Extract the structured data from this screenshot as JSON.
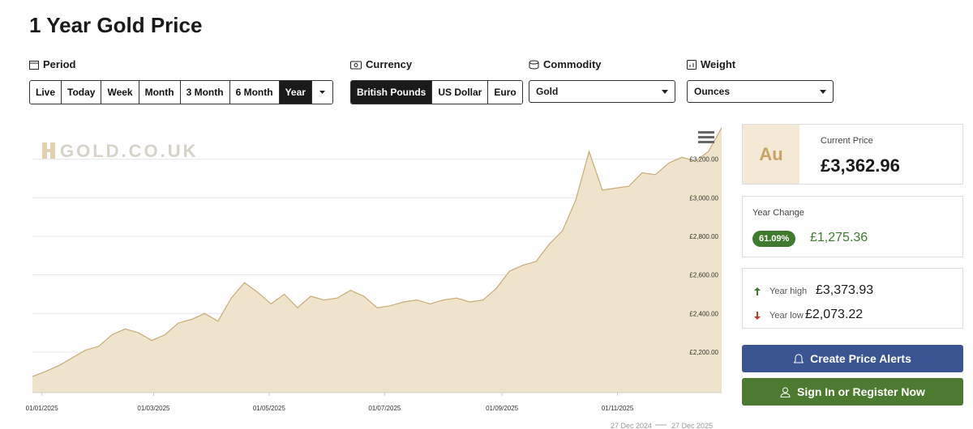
{
  "title": "1 Year Gold Price",
  "period": {
    "label": "Period",
    "options": [
      "Live",
      "Today",
      "Week",
      "Month",
      "3 Month",
      "6 Month",
      "Year"
    ],
    "selected": "Year"
  },
  "currency": {
    "label": "Currency",
    "options": [
      "British Pounds",
      "US Dollar",
      "Euro"
    ],
    "selected": "British Pounds"
  },
  "commodity": {
    "label": "Commodity",
    "value": "Gold"
  },
  "weight": {
    "label": "Weight",
    "value": "Ounces"
  },
  "chart_data": {
    "type": "area",
    "watermark": "GOLD.CO.UK",
    "color": "#c9ab78",
    "fill": "#efe3cc",
    "x": [
      "27/12/2024",
      "03/01/2025",
      "10/01/2025",
      "17/01/2025",
      "24/01/2025",
      "31/01/2025",
      "07/02/2025",
      "14/02/2025",
      "21/02/2025",
      "28/02/2025",
      "07/03/2025",
      "14/03/2025",
      "21/03/2025",
      "28/03/2025",
      "04/04/2025",
      "11/04/2025",
      "18/04/2025",
      "25/04/2025",
      "02/05/2025",
      "09/05/2025",
      "16/05/2025",
      "23/05/2025",
      "30/05/2025",
      "06/06/2025",
      "13/06/2025",
      "20/06/2025",
      "27/06/2025",
      "04/07/2025",
      "11/07/2025",
      "18/07/2025",
      "25/07/2025",
      "01/08/2025",
      "08/08/2025",
      "15/08/2025",
      "22/08/2025",
      "29/08/2025",
      "05/09/2025",
      "12/09/2025",
      "19/09/2025",
      "26/09/2025",
      "03/10/2025",
      "10/10/2025",
      "17/10/2025",
      "24/10/2025",
      "31/10/2025",
      "07/11/2025",
      "14/11/2025",
      "21/11/2025",
      "28/11/2025",
      "05/12/2025",
      "12/12/2025",
      "19/12/2025",
      "26/12/2025"
    ],
    "values": [
      2073,
      2100,
      2130,
      2170,
      2210,
      2230,
      2290,
      2320,
      2300,
      2260,
      2290,
      2350,
      2370,
      2400,
      2360,
      2480,
      2560,
      2510,
      2450,
      2500,
      2430,
      2490,
      2470,
      2480,
      2520,
      2490,
      2430,
      2440,
      2460,
      2470,
      2450,
      2470,
      2480,
      2460,
      2470,
      2530,
      2620,
      2650,
      2670,
      2760,
      2830,
      2990,
      3240,
      3040,
      3050,
      3060,
      3130,
      3120,
      3180,
      3210,
      3190,
      3240,
      3363
    ],
    "ylim": [
      1990,
      3375
    ],
    "yticks": [
      {
        "value": 2200,
        "label": "£2,200.00"
      },
      {
        "value": 2400,
        "label": "£2,400.00"
      },
      {
        "value": 2600,
        "label": "£2,600.00"
      },
      {
        "value": 2800,
        "label": "£2,800.00"
      },
      {
        "value": 3000,
        "label": "£3,000.00"
      },
      {
        "value": 3200,
        "label": "£3,200.00"
      }
    ],
    "xticks": [
      "01/01/2025",
      "01/03/2025",
      "01/05/2025",
      "01/07/2025",
      "01/09/2025",
      "01/11/2025"
    ],
    "grid": true,
    "date_range": [
      "27 Dec 2024",
      "27 Dec 2025"
    ]
  },
  "summary": {
    "symbol": "Au",
    "current_label": "Current Price",
    "current_price": "£3,362.96",
    "change_label": "Year Change",
    "change_percent": "61.09%",
    "change_amount": "£1,275.36",
    "high_label": "Year high",
    "high_value": "£3,373.93",
    "low_label": "Year low",
    "low_value": "£2,073.22"
  },
  "buttons": [
    "Create Price Alerts",
    "Sign In or Register Now"
  ]
}
